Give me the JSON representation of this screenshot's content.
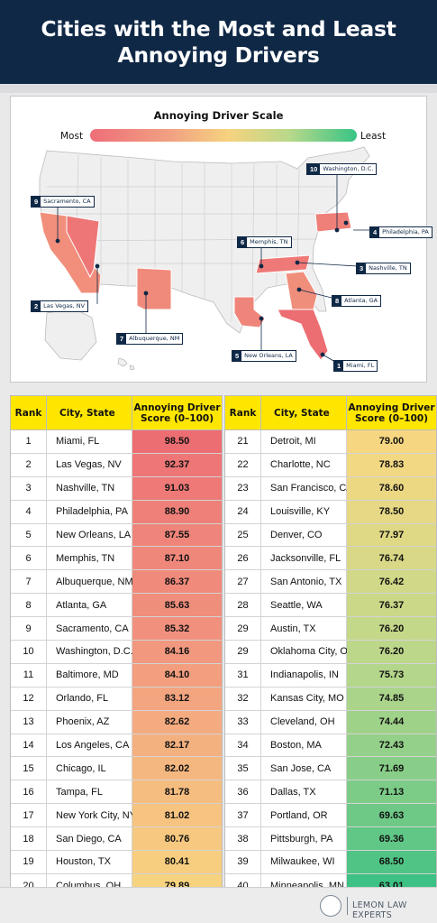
{
  "header": {
    "title_line1": "Cities with the Most and Least",
    "title_line2": "Annoying Drivers"
  },
  "scale": {
    "title": "Annoying Driver Scale",
    "most_label": "Most",
    "least_label": "Least"
  },
  "map_labels": [
    {
      "rank": "1",
      "city": "Miami, FL"
    },
    {
      "rank": "2",
      "city": "Las Vegas, NV"
    },
    {
      "rank": "3",
      "city": "Nashville, TN"
    },
    {
      "rank": "4",
      "city": "Philadelphia, PA"
    },
    {
      "rank": "5",
      "city": "New Orleans, LA"
    },
    {
      "rank": "6",
      "city": "Memphis, TN"
    },
    {
      "rank": "7",
      "city": "Albuquerque, NM"
    },
    {
      "rank": "8",
      "city": "Atlanta, GA"
    },
    {
      "rank": "9",
      "city": "Sacramento, CA"
    },
    {
      "rank": "10",
      "city": "Washington, D.C."
    }
  ],
  "table": {
    "col_rank": "Rank",
    "col_city": "City, State",
    "col_score_line1": "Annoying Driver",
    "col_score_line2": "Score (0–100)",
    "rows": [
      {
        "rank": "1",
        "city": "Miami, FL",
        "score": "98.50",
        "color": "#ec6d72"
      },
      {
        "rank": "2",
        "city": "Las Vegas, NV",
        "score": "92.37",
        "color": "#ee7676"
      },
      {
        "rank": "3",
        "city": "Nashville, TN",
        "score": "91.03",
        "color": "#ee7977"
      },
      {
        "rank": "4",
        "city": "Philadelphia, PA",
        "score": "88.90",
        "color": "#ef8079"
      },
      {
        "rank": "5",
        "city": "New Orleans, LA",
        "score": "87.55",
        "color": "#ef857a"
      },
      {
        "rank": "6",
        "city": "Memphis, TN",
        "score": "87.10",
        "color": "#f0877b"
      },
      {
        "rank": "7",
        "city": "Albuquerque, NM",
        "score": "86.37",
        "color": "#f08a7b"
      },
      {
        "rank": "8",
        "city": "Atlanta, GA",
        "score": "85.63",
        "color": "#f08e7c"
      },
      {
        "rank": "9",
        "city": "Sacramento, CA",
        "score": "85.32",
        "color": "#f1917d"
      },
      {
        "rank": "10",
        "city": "Washington, D.C.",
        "score": "84.16",
        "color": "#f1987e"
      },
      {
        "rank": "11",
        "city": "Baltimore, MD",
        "score": "84.10",
        "color": "#f29e7f"
      },
      {
        "rank": "12",
        "city": "Orlando, FL",
        "score": "83.12",
        "color": "#f3a580"
      },
      {
        "rank": "13",
        "city": "Phoenix, AZ",
        "score": "82.62",
        "color": "#f4ab80"
      },
      {
        "rank": "14",
        "city": "Los Angeles, CA",
        "score": "82.17",
        "color": "#f4b180"
      },
      {
        "rank": "15",
        "city": "Chicago, IL",
        "score": "82.02",
        "color": "#f5b780"
      },
      {
        "rank": "16",
        "city": "Tampa, FL",
        "score": "81.78",
        "color": "#f5bd80"
      },
      {
        "rank": "17",
        "city": "New York City, NY",
        "score": "81.02",
        "color": "#f6c380"
      },
      {
        "rank": "18",
        "city": "San Diego, CA",
        "score": "80.76",
        "color": "#f6c880"
      },
      {
        "rank": "19",
        "city": "Houston, TX",
        "score": "80.41",
        "color": "#f7ce80"
      },
      {
        "rank": "20",
        "city": "Columbus, OH",
        "score": "79.89",
        "color": "#f7d380"
      },
      {
        "rank": "21",
        "city": "Detroit, MI",
        "score": "79.00",
        "color": "#f6d680"
      },
      {
        "rank": "22",
        "city": "Charlotte, NC",
        "score": "78.83",
        "color": "#f2d882"
      },
      {
        "rank": "23",
        "city": "San Francisco, CA",
        "score": "78.60",
        "color": "#ecd883"
      },
      {
        "rank": "24",
        "city": "Louisville, KY",
        "score": "78.50",
        "color": "#e6d884"
      },
      {
        "rank": "25",
        "city": "Denver, CO",
        "score": "77.97",
        "color": "#dfd885"
      },
      {
        "rank": "26",
        "city": "Jacksonville, FL",
        "score": "76.74",
        "color": "#d8d886"
      },
      {
        "rank": "27",
        "city": "San Antonio, TX",
        "score": "76.42",
        "color": "#d1d887"
      },
      {
        "rank": "28",
        "city": "Seattle, WA",
        "score": "76.37",
        "color": "#cad888"
      },
      {
        "rank": "29",
        "city": "Austin, TX",
        "score": "76.20",
        "color": "#c3d889"
      },
      {
        "rank": "29",
        "city": "Oklahoma City, OK",
        "score": "76.20",
        "color": "#bcd78a"
      },
      {
        "rank": "31",
        "city": "Indianapolis, IN",
        "score": "75.73",
        "color": "#b3d68a"
      },
      {
        "rank": "32",
        "city": "Kansas City, MO",
        "score": "74.85",
        "color": "#a9d48a"
      },
      {
        "rank": "33",
        "city": "Cleveland, OH",
        "score": "74.44",
        "color": "#9fd289"
      },
      {
        "rank": "34",
        "city": "Boston, MA",
        "score": "72.43",
        "color": "#94d089"
      },
      {
        "rank": "35",
        "city": "San Jose, CA",
        "score": "71.69",
        "color": "#88ce88"
      },
      {
        "rank": "36",
        "city": "Dallas, TX",
        "score": "71.13",
        "color": "#7ccc88"
      },
      {
        "rank": "37",
        "city": "Portland, OR",
        "score": "69.63",
        "color": "#6ec987"
      },
      {
        "rank": "38",
        "city": "Pittsburgh, PA",
        "score": "69.36",
        "color": "#60c786"
      },
      {
        "rank": "39",
        "city": "Milwaukee, WI",
        "score": "68.50",
        "color": "#50c485"
      },
      {
        "rank": "40",
        "city": "Minneapolis, MN",
        "score": "63.01",
        "color": "#3ec184"
      }
    ]
  },
  "footer": {
    "brand": "LEMON LAW EXPERTS"
  }
}
